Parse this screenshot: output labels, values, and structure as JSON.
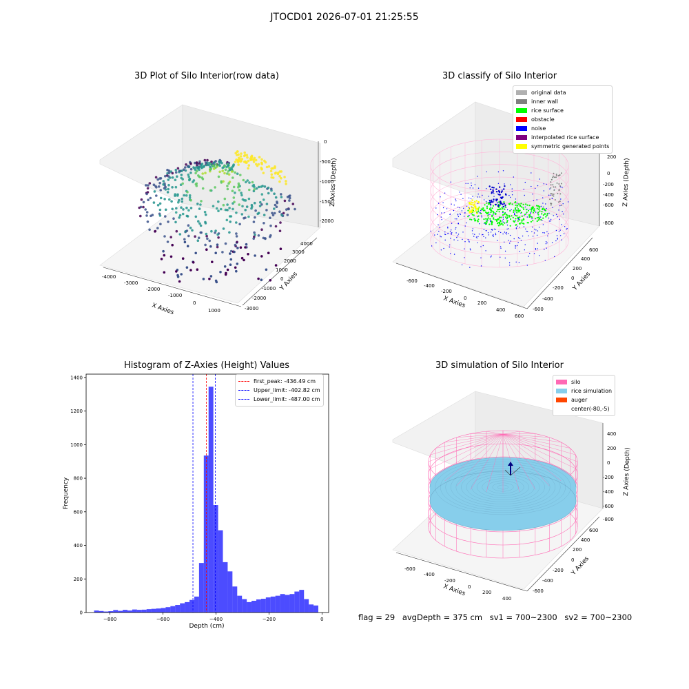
{
  "suptitle": "JTOCD01 2026-07-01 21:25:55",
  "panels": {
    "raw": {
      "title": "3D Plot of Silo Interior(row data)",
      "xlabel": "X Axies",
      "ylabel": "Y Axies",
      "zlabel": "Z Axies (Depth)",
      "xticks": [
        "-4000",
        "-3000",
        "-2000",
        "-1000",
        "0",
        "1000"
      ],
      "yticks": [
        "-3000",
        "-2000",
        "-1000",
        "0",
        "1000",
        "2000",
        "3000",
        "4000"
      ],
      "zticks": [
        "0",
        "-500",
        "-1000",
        "-1500",
        "-2000"
      ]
    },
    "classify": {
      "title": "3D classify of Silo Interior",
      "xlabel": "X Axies",
      "ylabel": "Y Axies",
      "zlabel": "Z Axies (Depth)",
      "xticks": [
        "-600",
        "-400",
        "-200",
        "0",
        "200",
        "400",
        "600"
      ],
      "yticks": [
        "-600",
        "-400",
        "-200",
        "0",
        "200",
        "400",
        "600"
      ],
      "zticks": [
        "200",
        "0",
        "-200",
        "-400",
        "-600",
        "-800"
      ],
      "legend": [
        {
          "label": "original data",
          "color": "#b0b0b0"
        },
        {
          "label": "inner wall",
          "color": "#808080"
        },
        {
          "label": "rice surface",
          "color": "#00ff00"
        },
        {
          "label": "obstacle",
          "color": "#ff0000"
        },
        {
          "label": "noise",
          "color": "#0000ff"
        },
        {
          "label": "interpolated rice surface",
          "color": "#800080"
        },
        {
          "label": "symmetric generated points",
          "color": "#ffff00"
        }
      ]
    },
    "simulation": {
      "title": "3D simulation of Silo Interior",
      "xlabel": "X Axies",
      "ylabel": "Y Axies",
      "zlabel": "Z Axies (Depth)",
      "xticks": [
        "-600",
        "-400",
        "-200",
        "0",
        "200",
        "400"
      ],
      "yticks": [
        "-600",
        "-400",
        "-200",
        "0",
        "200",
        "400",
        "600"
      ],
      "zticks": [
        "400",
        "200",
        "0",
        "-200",
        "-400",
        "-600",
        "-800"
      ],
      "legend": [
        {
          "label": "silo",
          "color": "#ff69b4"
        },
        {
          "label": "rice simulation",
          "color": "#87ceeb"
        },
        {
          "label": "auger",
          "color": "#ff4500"
        },
        {
          "label": "center(-80,-5)",
          "color": "#ffffff"
        }
      ]
    }
  },
  "chart_data": [
    {
      "type": "histogram",
      "title": "Histogram of Z-Axies (Height) Values",
      "xlabel": "Depth (cm)",
      "ylabel": "Frequency",
      "xlim": [
        -890,
        25
      ],
      "ylim": [
        0,
        1420
      ],
      "xticks": [
        -800,
        -600,
        -400,
        -200,
        0
      ],
      "yticks": [
        0,
        200,
        400,
        600,
        800,
        1000,
        1200,
        1400
      ],
      "bar_color": "#0000ff",
      "bin_width": 18,
      "bins_start": [
        -860,
        -842,
        -824,
        -806,
        -788,
        -770,
        -752,
        -734,
        -716,
        -698,
        -680,
        -662,
        -644,
        -626,
        -608,
        -590,
        -572,
        -554,
        -536,
        -518,
        -500,
        -482,
        -464,
        -446,
        -428,
        -410,
        -392,
        -374,
        -356,
        -338,
        -320,
        -302,
        -284,
        -266,
        -248,
        -230,
        -212,
        -194,
        -176,
        -158,
        -140,
        -122,
        -104,
        -86,
        -68,
        -50,
        -32
      ],
      "counts": [
        12,
        9,
        6,
        8,
        15,
        10,
        16,
        12,
        18,
        16,
        17,
        20,
        22,
        24,
        27,
        32,
        38,
        45,
        55,
        62,
        75,
        95,
        295,
        935,
        1345,
        640,
        490,
        300,
        245,
        155,
        100,
        80,
        62,
        70,
        78,
        82,
        90,
        95,
        100,
        110,
        105,
        110,
        125,
        135,
        80,
        48,
        42
      ],
      "vlines": [
        {
          "label": "first_peak: -436.49 cm",
          "value": -436.49,
          "color": "#ff0000"
        },
        {
          "label": "Upper_limit: -402.82 cm",
          "value": -402.82,
          "color": "#0000ff"
        },
        {
          "label": "Lower_limit: -487.00 cm",
          "value": -487.0,
          "color": "#0000ff"
        }
      ]
    }
  ],
  "footer": {
    "flag": "flag = 29",
    "avg": "avgDepth = 375 cm",
    "sv1": "sv1 = 700~2300",
    "sv2": "sv2 = 700~2300"
  }
}
